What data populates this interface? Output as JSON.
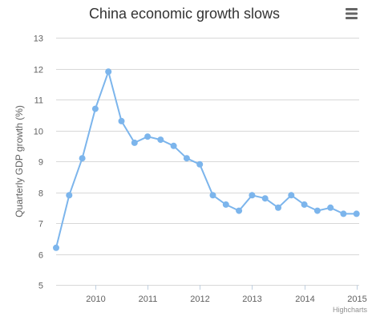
{
  "menu": {
    "icon": "hamburger-menu-icon"
  },
  "credits": "Highcharts",
  "colors": {
    "series": "#7cb5ec",
    "grid": "#d8d8d8",
    "axis_text": "#606060",
    "title": "#333333",
    "credits": "#909090",
    "menu": "#666666"
  },
  "chart_data": {
    "type": "line",
    "title": "China economic growth slows",
    "ylabel": "Quarterly GDP growth (%)",
    "xlabel": "",
    "ylim": [
      5,
      13
    ],
    "yticks": [
      5,
      6,
      7,
      8,
      9,
      10,
      11,
      12,
      13
    ],
    "xlim": [
      2009.25,
      2015.05
    ],
    "xticks": [
      2010,
      2011,
      2012,
      2013,
      2014,
      2015
    ],
    "grid": true,
    "legend": "none",
    "series": [
      {
        "x": [
          2009.25,
          2009.5,
          2009.75,
          2010.0,
          2010.25,
          2010.5,
          2010.75,
          2011.0,
          2011.25,
          2011.5,
          2011.75,
          2012.0,
          2012.25,
          2012.5,
          2012.75,
          2013.0,
          2013.25,
          2013.5,
          2013.75,
          2014.0,
          2014.25,
          2014.5,
          2014.75,
          2015.0
        ],
        "values": [
          6.2,
          7.9,
          9.1,
          10.7,
          11.9,
          10.3,
          9.6,
          9.8,
          9.7,
          9.5,
          9.1,
          8.9,
          7.9,
          7.6,
          7.4,
          7.9,
          7.8,
          7.5,
          7.9,
          7.6,
          7.4,
          7.5,
          7.3,
          7.3
        ]
      }
    ]
  }
}
